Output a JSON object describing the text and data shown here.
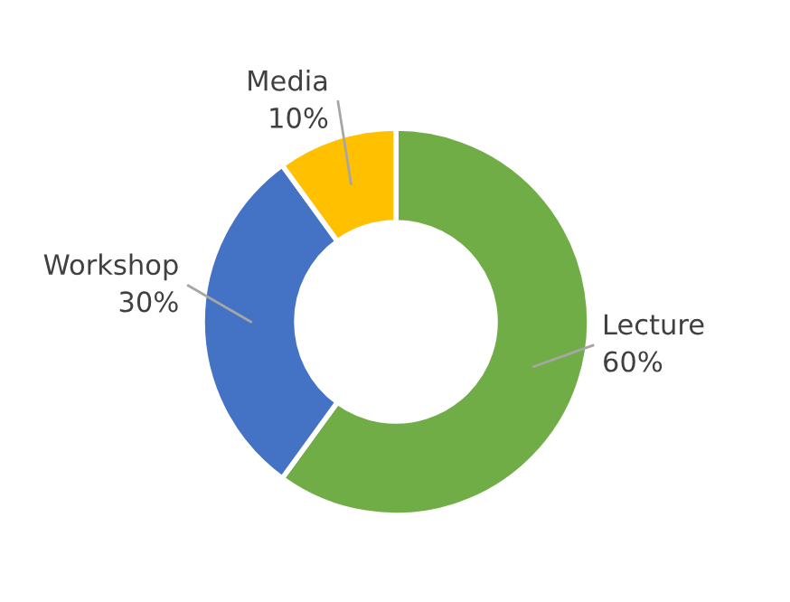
{
  "chart_data": {
    "type": "donut",
    "categories": [
      "Lecture",
      "Workshop",
      "Media"
    ],
    "values": [
      60,
      30,
      10
    ],
    "value_labels": [
      "60%",
      "30%",
      "10%"
    ],
    "colors": [
      "#70ad47",
      "#4472c4",
      "#ffc000"
    ],
    "legend": false
  }
}
